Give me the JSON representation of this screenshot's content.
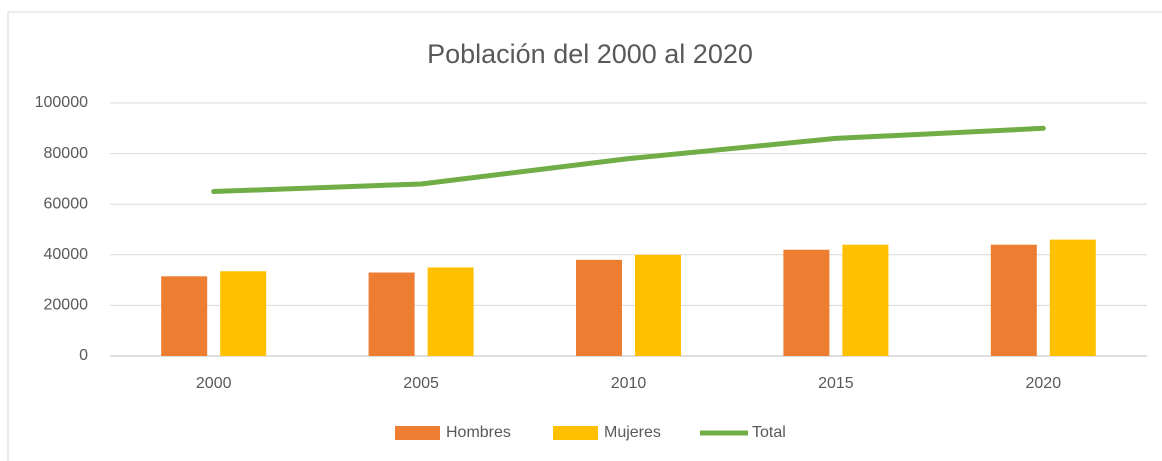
{
  "chart_data": {
    "type": "bar",
    "title": "Población del 2000 al 2020",
    "categories": [
      "2000",
      "2005",
      "2010",
      "2015",
      "2020"
    ],
    "series": [
      {
        "name": "Hombres",
        "type": "bar",
        "color": "#ed7d31",
        "values": [
          31500,
          33000,
          38000,
          42000,
          44000
        ]
      },
      {
        "name": "Mujeres",
        "type": "bar",
        "color": "#ffc000",
        "values": [
          33500,
          35000,
          40000,
          44000,
          46000
        ]
      },
      {
        "name": "Total",
        "type": "line",
        "color": "#70ad47",
        "values": [
          65000,
          68000,
          78000,
          86000,
          90000
        ]
      }
    ],
    "ylim": [
      0,
      100000
    ],
    "yticks": [
      0,
      20000,
      40000,
      60000,
      80000,
      100000
    ],
    "grid": true,
    "legend": "bottom"
  }
}
